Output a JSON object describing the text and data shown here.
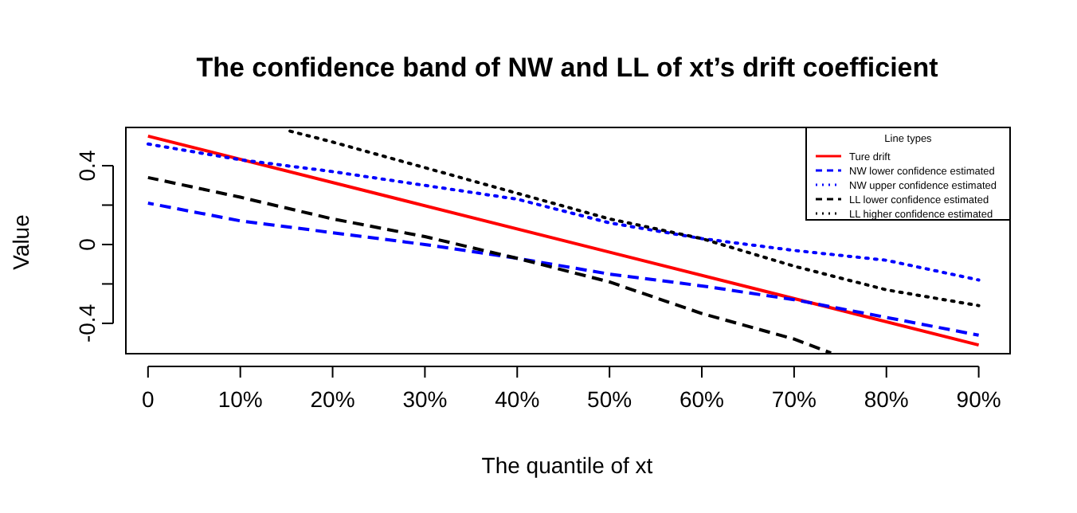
{
  "chart_data": {
    "type": "line",
    "title": "The confidence band of NW and LL of xt’s drift coefficient",
    "xlabel": "The quantile of xt",
    "ylabel": "Value",
    "legend_title": "Line types",
    "legend": "top right",
    "x": [
      0,
      10,
      20,
      30,
      40,
      50,
      60,
      70,
      80,
      90
    ],
    "xlim": [
      -2.4,
      93.4
    ],
    "ylim": [
      -0.554,
      0.594
    ],
    "xticks": [
      0,
      {
        "value": 10,
        "label": "10%"
      },
      {
        "value": 20,
        "label": "20%"
      },
      {
        "value": 30,
        "label": "30%"
      },
      {
        "value": 40,
        "label": "40%"
      },
      {
        "value": 50,
        "label": "50%"
      },
      {
        "value": 60,
        "label": "60%"
      },
      {
        "value": 70,
        "label": "70%"
      },
      {
        "value": 80,
        "label": "80%"
      },
      {
        "value": 90,
        "label": "90%"
      }
    ],
    "yticks": [
      -0.4,
      {
        "value": -0.2,
        "label": null
      },
      0.0,
      {
        "value": 0.2,
        "label": null
      },
      0.4
    ],
    "series": [
      {
        "name": "Ture drift",
        "color": "#ff0000",
        "line_style": "solid",
        "x": [
          0,
          90
        ],
        "values": [
          0.55,
          -0.51
        ]
      },
      {
        "name": "NW lower confidence estimated",
        "color": "#0000ff",
        "line_style": "dashed",
        "values": [
          0.21,
          0.12,
          0.06,
          0.0,
          -0.07,
          -0.15,
          -0.21,
          -0.28,
          -0.37,
          -0.46
        ]
      },
      {
        "name": "NW upper confidence estimated",
        "color": "#0000ff",
        "line_style": "dotted",
        "values": [
          0.51,
          0.43,
          0.37,
          0.3,
          0.23,
          0.11,
          0.03,
          -0.03,
          -0.08,
          -0.18
        ]
      },
      {
        "name": "LL lower confidence estimated",
        "color": "#000000",
        "line_style": "dashed",
        "x": [
          0,
          10,
          20,
          30,
          40,
          50,
          60,
          70,
          74
        ],
        "values": [
          0.34,
          0.24,
          0.13,
          0.04,
          -0.07,
          -0.19,
          -0.35,
          -0.48,
          -0.55
        ]
      },
      {
        "name": "LL higher confidence estimated",
        "color": "#000000",
        "line_style": "dotted",
        "x": [
          15,
          20,
          30,
          40,
          50,
          60,
          70,
          80,
          90
        ],
        "values": [
          0.58,
          0.52,
          0.39,
          0.26,
          0.13,
          0.03,
          -0.11,
          -0.23,
          -0.31
        ]
      }
    ]
  }
}
